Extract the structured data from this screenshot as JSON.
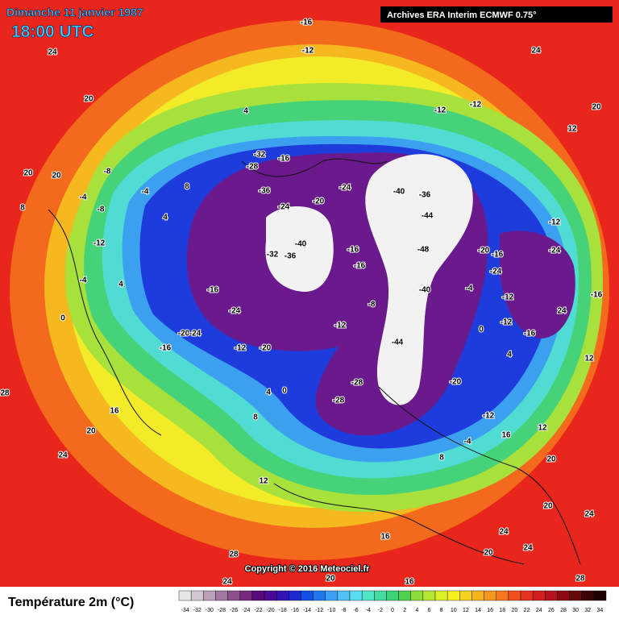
{
  "header": {
    "date": "Dimanche 11 janvier 1987",
    "time": "18:00 UTC",
    "source": "Archives ERA Interim ECMWF 0.75°"
  },
  "map": {
    "contour_labels": [
      -16,
      24,
      -12,
      24,
      20,
      4,
      -12,
      -12,
      20,
      12,
      20,
      20,
      -8,
      -4,
      -8,
      -4,
      8,
      -32,
      -16,
      -28,
      -36,
      -24,
      -20,
      -40,
      -36,
      -32,
      -24,
      -40,
      -36,
      -44,
      -48,
      -40,
      -44,
      -12,
      -24,
      -16,
      -12,
      -16,
      24,
      12,
      -20,
      -16,
      -24,
      -4,
      -12,
      0,
      4,
      -16,
      -20,
      -24,
      -12,
      -20,
      -12,
      -16,
      -16,
      -8,
      0,
      4,
      8,
      16,
      20,
      24,
      28,
      12,
      -28,
      -28,
      -20,
      -12,
      -4,
      8,
      16,
      12,
      20,
      20,
      24,
      24,
      20,
      24,
      28,
      16,
      16,
      20,
      24,
      28,
      -4,
      0,
      4,
      -12,
      4,
      8,
      -16,
      -24
    ]
  },
  "footer": {
    "copyright": "Copyright © 2016 Meteociel.fr",
    "legend_title": "Température 2m (°C)"
  },
  "colorbar": {
    "ticks": [
      -34,
      -32,
      -30,
      -28,
      -26,
      -24,
      -22,
      -20,
      -18,
      -16,
      -14,
      -12,
      -10,
      -8,
      -6,
      -4,
      -2,
      0,
      2,
      4,
      6,
      8,
      10,
      12,
      14,
      16,
      18,
      20,
      22,
      24,
      26,
      28,
      30,
      32,
      34
    ],
    "colors": [
      "#e6e6e6",
      "#d2c8d2",
      "#b9a0b9",
      "#a078a0",
      "#8c508c",
      "#78287d",
      "#5a0a78",
      "#4b0a96",
      "#3214b4",
      "#1e28d2",
      "#1450e6",
      "#1e78f0",
      "#3ca0f5",
      "#50c0f5",
      "#5adcf0",
      "#50e6c8",
      "#46dca0",
      "#3cd278",
      "#50d250",
      "#8cdc3c",
      "#b4e632",
      "#dcf028",
      "#f5f01e",
      "#f5d21e",
      "#f5b41e",
      "#f5961e",
      "#f5781e",
      "#f0501e",
      "#e6321e",
      "#d21e1e",
      "#b4141e",
      "#8c0a14",
      "#640a0a",
      "#3c0505",
      "#1e0000"
    ]
  }
}
